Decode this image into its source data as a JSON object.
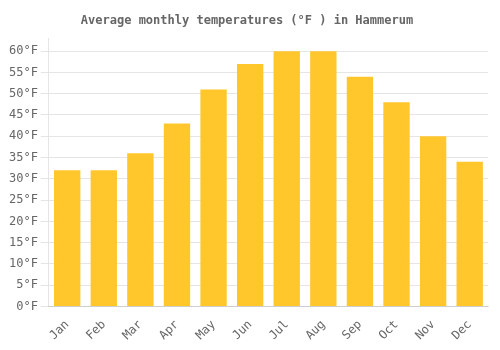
{
  "chart_data": {
    "type": "bar",
    "title": "Average monthly temperatures (°F ) in Hammerum",
    "categories": [
      "Jan",
      "Feb",
      "Mar",
      "Apr",
      "May",
      "Jun",
      "Jul",
      "Aug",
      "Sep",
      "Oct",
      "Nov",
      "Dec"
    ],
    "values": [
      32,
      32,
      36,
      43,
      51,
      57,
      60,
      60,
      54,
      48,
      40,
      34
    ],
    "color": "#FFC72C",
    "ylim": [
      0,
      63
    ],
    "yticks": [
      {
        "value": 0,
        "label": "0°F"
      },
      {
        "value": 5,
        "label": "5°F"
      },
      {
        "value": 10,
        "label": "10°F"
      },
      {
        "value": 15,
        "label": "15°F"
      },
      {
        "value": 20,
        "label": "20°F"
      },
      {
        "value": 25,
        "label": "25°F"
      },
      {
        "value": 30,
        "label": "30°F"
      },
      {
        "value": 35,
        "label": "35°F"
      },
      {
        "value": 40,
        "label": "40°F"
      },
      {
        "value": 45,
        "label": "45°F"
      },
      {
        "value": 50,
        "label": "50°F"
      },
      {
        "value": 55,
        "label": "55°F"
      },
      {
        "value": 60,
        "label": "60°F"
      }
    ],
    "grid": true
  }
}
